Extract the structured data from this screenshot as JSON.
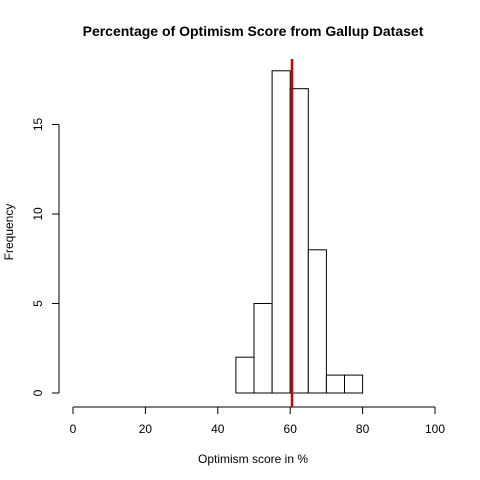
{
  "chart_data": {
    "type": "bar",
    "title": "Percentage of Optimism Score from Gallup Dataset",
    "xlabel": "Optimism score in %",
    "ylabel": "Frequency",
    "xlim": [
      0,
      100
    ],
    "ylim": [
      0,
      18
    ],
    "x_ticks": [
      "0",
      "20",
      "40",
      "60",
      "80",
      "100"
    ],
    "y_ticks": [
      "0",
      "5",
      "10",
      "15"
    ],
    "bins": [
      {
        "from": 45,
        "to": 50,
        "count": 2
      },
      {
        "from": 50,
        "to": 55,
        "count": 5
      },
      {
        "from": 55,
        "to": 60,
        "count": 18
      },
      {
        "from": 60,
        "to": 65,
        "count": 17
      },
      {
        "from": 65,
        "to": 70,
        "count": 8
      },
      {
        "from": 70,
        "to": 75,
        "count": 1
      },
      {
        "from": 75,
        "to": 80,
        "count": 1
      }
    ],
    "reference_line": {
      "x": 60.5,
      "color": "#cc0000"
    },
    "bar_fill": "#ffffff",
    "bar_stroke": "#000000",
    "grid": false,
    "legend": "none"
  }
}
